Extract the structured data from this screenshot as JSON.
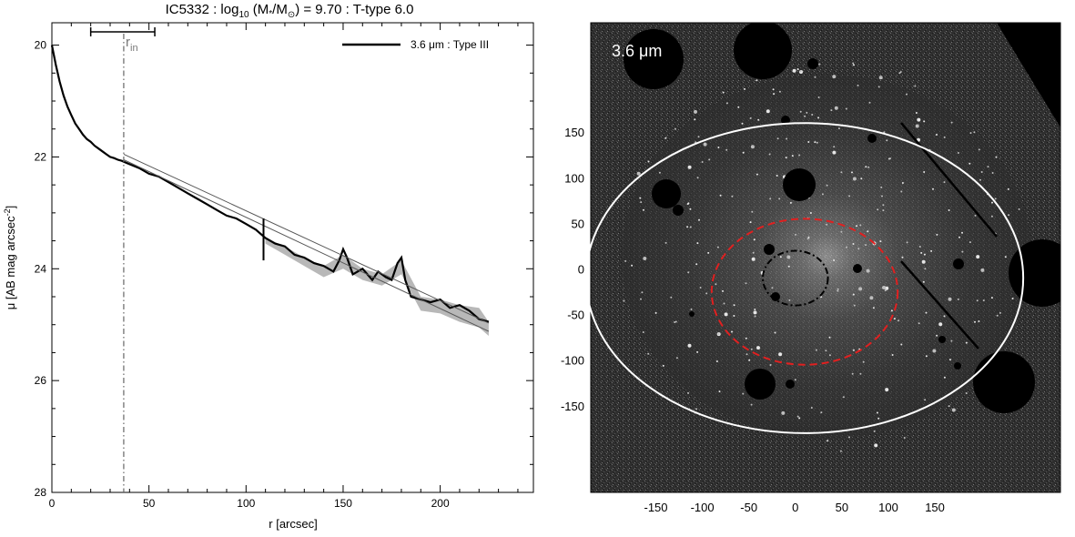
{
  "chart_data": [
    {
      "type": "line",
      "title_parts": {
        "galaxy": "IC5332 : log",
        "log_sub": "10",
        "paren_open": " (M",
        "star_sub": "*",
        "slash": "/M",
        "sun": "⊙",
        "rest": ") = 9.70 : T-type 6.0"
      },
      "xlabel": "r [arcsec]",
      "ylabel_main": "μ [AB mag arcsec",
      "ylabel_sup": "-2",
      "ylabel_end": "]",
      "xlim": [
        0,
        248
      ],
      "ylim": [
        28,
        19.6
      ],
      "y_inverted": true,
      "xticks": [
        0,
        50,
        100,
        150,
        200
      ],
      "yticks": [
        20,
        22,
        24,
        26,
        28
      ],
      "grid": false,
      "legend": {
        "placement": "top-right",
        "label": "3.6 μm : Type III",
        "color": "#000000"
      },
      "annotations": {
        "r_in_label": "r",
        "r_in_sub": "in",
        "r_in_value": 37,
        "r_in_bar": [
          20,
          53
        ],
        "break_radius": 109
      },
      "series": [
        {
          "name": "3.6 μm : Type III",
          "color": "#000000",
          "x": [
            0,
            2,
            4,
            6,
            8,
            10,
            12,
            14,
            16,
            18,
            20,
            22,
            24,
            26,
            28,
            30,
            32,
            34,
            36,
            38,
            40,
            45,
            50,
            55,
            60,
            65,
            70,
            75,
            80,
            85,
            90,
            95,
            100,
            105,
            110,
            115,
            120,
            125,
            130,
            135,
            140,
            145,
            148,
            150,
            152,
            155,
            160,
            165,
            168,
            172,
            175,
            178,
            180,
            182,
            185,
            190,
            195,
            200,
            205,
            210,
            215,
            220,
            225
          ],
          "y": [
            20.0,
            20.35,
            20.65,
            20.9,
            21.1,
            21.25,
            21.4,
            21.5,
            21.6,
            21.68,
            21.73,
            21.8,
            21.85,
            21.9,
            21.95,
            22.0,
            22.02,
            22.05,
            22.07,
            22.1,
            22.13,
            22.2,
            22.3,
            22.35,
            22.45,
            22.55,
            22.65,
            22.75,
            22.85,
            22.95,
            23.05,
            23.1,
            23.2,
            23.3,
            23.45,
            23.55,
            23.6,
            23.75,
            23.8,
            23.9,
            23.95,
            24.05,
            23.85,
            23.65,
            23.8,
            24.1,
            24.0,
            24.2,
            24.05,
            24.15,
            24.2,
            23.9,
            23.8,
            24.2,
            24.5,
            24.55,
            24.6,
            24.55,
            24.7,
            24.65,
            24.75,
            24.9,
            24.95
          ]
        },
        {
          "name": "",
          "color": "#555555",
          "x": [
            37,
            225
          ],
          "y": [
            22.05,
            25.12
          ]
        },
        {
          "name": "",
          "color": "#555555",
          "x": [
            37,
            225
          ],
          "y": [
            21.95,
            24.97
          ]
        }
      ],
      "error_band": {
        "color": "#b8b8b8",
        "x": [
          110,
          120,
          130,
          140,
          150,
          160,
          170,
          180,
          190,
          200,
          210,
          220,
          225
        ],
        "y_low": [
          23.45,
          23.6,
          23.8,
          23.95,
          23.75,
          24.0,
          24.1,
          23.85,
          24.5,
          24.55,
          24.65,
          24.7,
          24.95
        ],
        "y_high": [
          23.55,
          23.75,
          23.95,
          24.15,
          24.0,
          24.2,
          24.3,
          24.1,
          24.75,
          24.8,
          24.95,
          25.05,
          25.2
        ]
      }
    },
    {
      "type": "image",
      "band_label": "3.6 μm",
      "xticks": [
        -150,
        -100,
        -50,
        0,
        50,
        100,
        150
      ],
      "yticks": [
        150,
        100,
        50,
        0,
        -50,
        -100,
        -150
      ],
      "xlim": [
        -220,
        285
      ],
      "ylim": [
        -245,
        270
      ],
      "ellipses": [
        {
          "name": "outer-ellipse",
          "center": [
            10,
            -10
          ],
          "rx": 235,
          "ry": 170,
          "color": "#ffffff",
          "style": "solid"
        },
        {
          "name": "break-ellipse",
          "center": [
            10,
            -25
          ],
          "rx": 100,
          "ry": 80,
          "color": "#e02020",
          "style": "dashed"
        },
        {
          "name": "inner-ellipse",
          "center": [
            0,
            -10
          ],
          "rx": 35,
          "ry": 30,
          "color": "#000000",
          "style": "dashdot"
        }
      ]
    }
  ]
}
